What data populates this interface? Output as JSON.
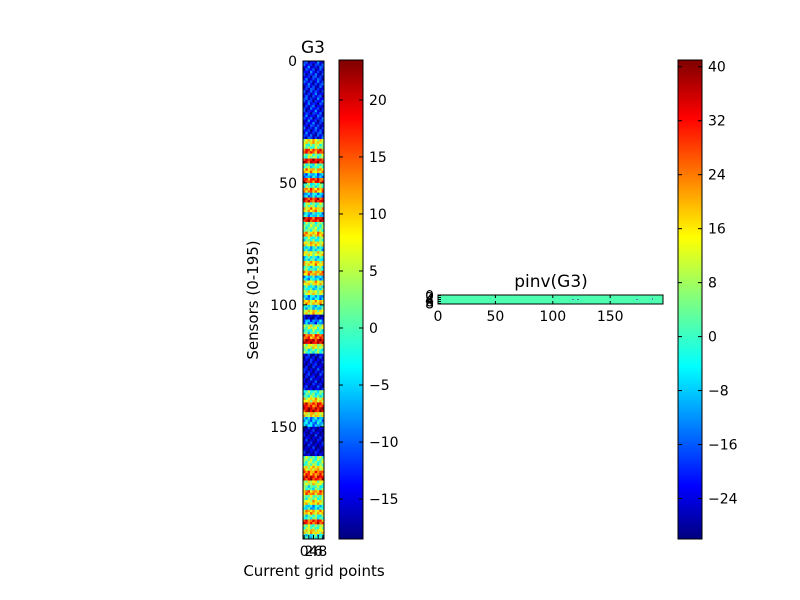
{
  "chart_data": [
    {
      "type": "heatmap",
      "title": "G3",
      "xlabel": "Current grid points",
      "ylabel": "Sensors (0-195)",
      "xticks": [
        "0",
        "2",
        "4",
        "6",
        "8"
      ],
      "yticks": [
        "0",
        "50",
        "100",
        "150"
      ],
      "rows": 196,
      "cols": 9,
      "colormap": "jet",
      "colorbar": {
        "range": [
          -18.5,
          23.5
        ],
        "ticks": [
          "20",
          "15",
          "10",
          "5",
          "0",
          "−5",
          "−10",
          "−15"
        ]
      },
      "row_profile": [
        [
          0,
          32,
          -13
        ],
        [
          32,
          34,
          8
        ],
        [
          34,
          36,
          2
        ],
        [
          36,
          38,
          15
        ],
        [
          38,
          40,
          2
        ],
        [
          40,
          42,
          19
        ],
        [
          42,
          44,
          0
        ],
        [
          44,
          46,
          10
        ],
        [
          46,
          48,
          -6
        ],
        [
          48,
          50,
          16
        ],
        [
          50,
          52,
          0
        ],
        [
          52,
          54,
          12
        ],
        [
          54,
          56,
          -5
        ],
        [
          56,
          58,
          17
        ],
        [
          58,
          60,
          2
        ],
        [
          60,
          62,
          10
        ],
        [
          62,
          64,
          -4
        ],
        [
          64,
          66,
          18
        ],
        [
          66,
          70,
          2
        ],
        [
          70,
          72,
          10
        ],
        [
          72,
          74,
          0
        ],
        [
          74,
          76,
          8
        ],
        [
          76,
          78,
          -3
        ],
        [
          78,
          80,
          6
        ],
        [
          80,
          82,
          -2
        ],
        [
          82,
          84,
          9
        ],
        [
          84,
          86,
          0
        ],
        [
          86,
          88,
          11
        ],
        [
          88,
          90,
          -4
        ],
        [
          90,
          92,
          8
        ],
        [
          92,
          94,
          -2
        ],
        [
          94,
          96,
          6
        ],
        [
          96,
          98,
          -5
        ],
        [
          98,
          100,
          9
        ],
        [
          100,
          102,
          -3
        ],
        [
          102,
          104,
          8
        ],
        [
          104,
          106,
          -16
        ],
        [
          106,
          108,
          -8
        ],
        [
          108,
          110,
          4
        ],
        [
          110,
          112,
          0
        ],
        [
          112,
          114,
          14
        ],
        [
          114,
          116,
          20
        ],
        [
          116,
          118,
          6
        ],
        [
          118,
          120,
          0
        ],
        [
          120,
          135,
          -15
        ],
        [
          135,
          138,
          0
        ],
        [
          138,
          140,
          8
        ],
        [
          140,
          142,
          16
        ],
        [
          142,
          144,
          20
        ],
        [
          144,
          146,
          8
        ],
        [
          146,
          150,
          -6
        ],
        [
          150,
          162,
          -16
        ],
        [
          162,
          166,
          2
        ],
        [
          166,
          168,
          8
        ],
        [
          168,
          170,
          14
        ],
        [
          170,
          172,
          18
        ],
        [
          172,
          174,
          6
        ],
        [
          174,
          176,
          0
        ],
        [
          176,
          178,
          12
        ],
        [
          178,
          180,
          2
        ],
        [
          180,
          182,
          8
        ],
        [
          182,
          184,
          -4
        ],
        [
          184,
          186,
          10
        ],
        [
          186,
          188,
          0
        ],
        [
          188,
          190,
          16
        ],
        [
          190,
          192,
          2
        ],
        [
          192,
          194,
          8
        ],
        [
          194,
          196,
          -2
        ]
      ]
    },
    {
      "type": "heatmap",
      "title": "pinv(G3)",
      "xticks": [
        "0",
        "50",
        "100",
        "150"
      ],
      "yticks": [
        "0",
        "2",
        "4",
        "6",
        "8"
      ],
      "rows": 9,
      "cols": 196,
      "colormap": "jet",
      "colorbar": {
        "range": [
          -30,
          41
        ],
        "ticks": [
          "40",
          "32",
          "24",
          "16",
          "8",
          "0",
          "−8",
          "−16",
          "−24"
        ]
      }
    }
  ]
}
